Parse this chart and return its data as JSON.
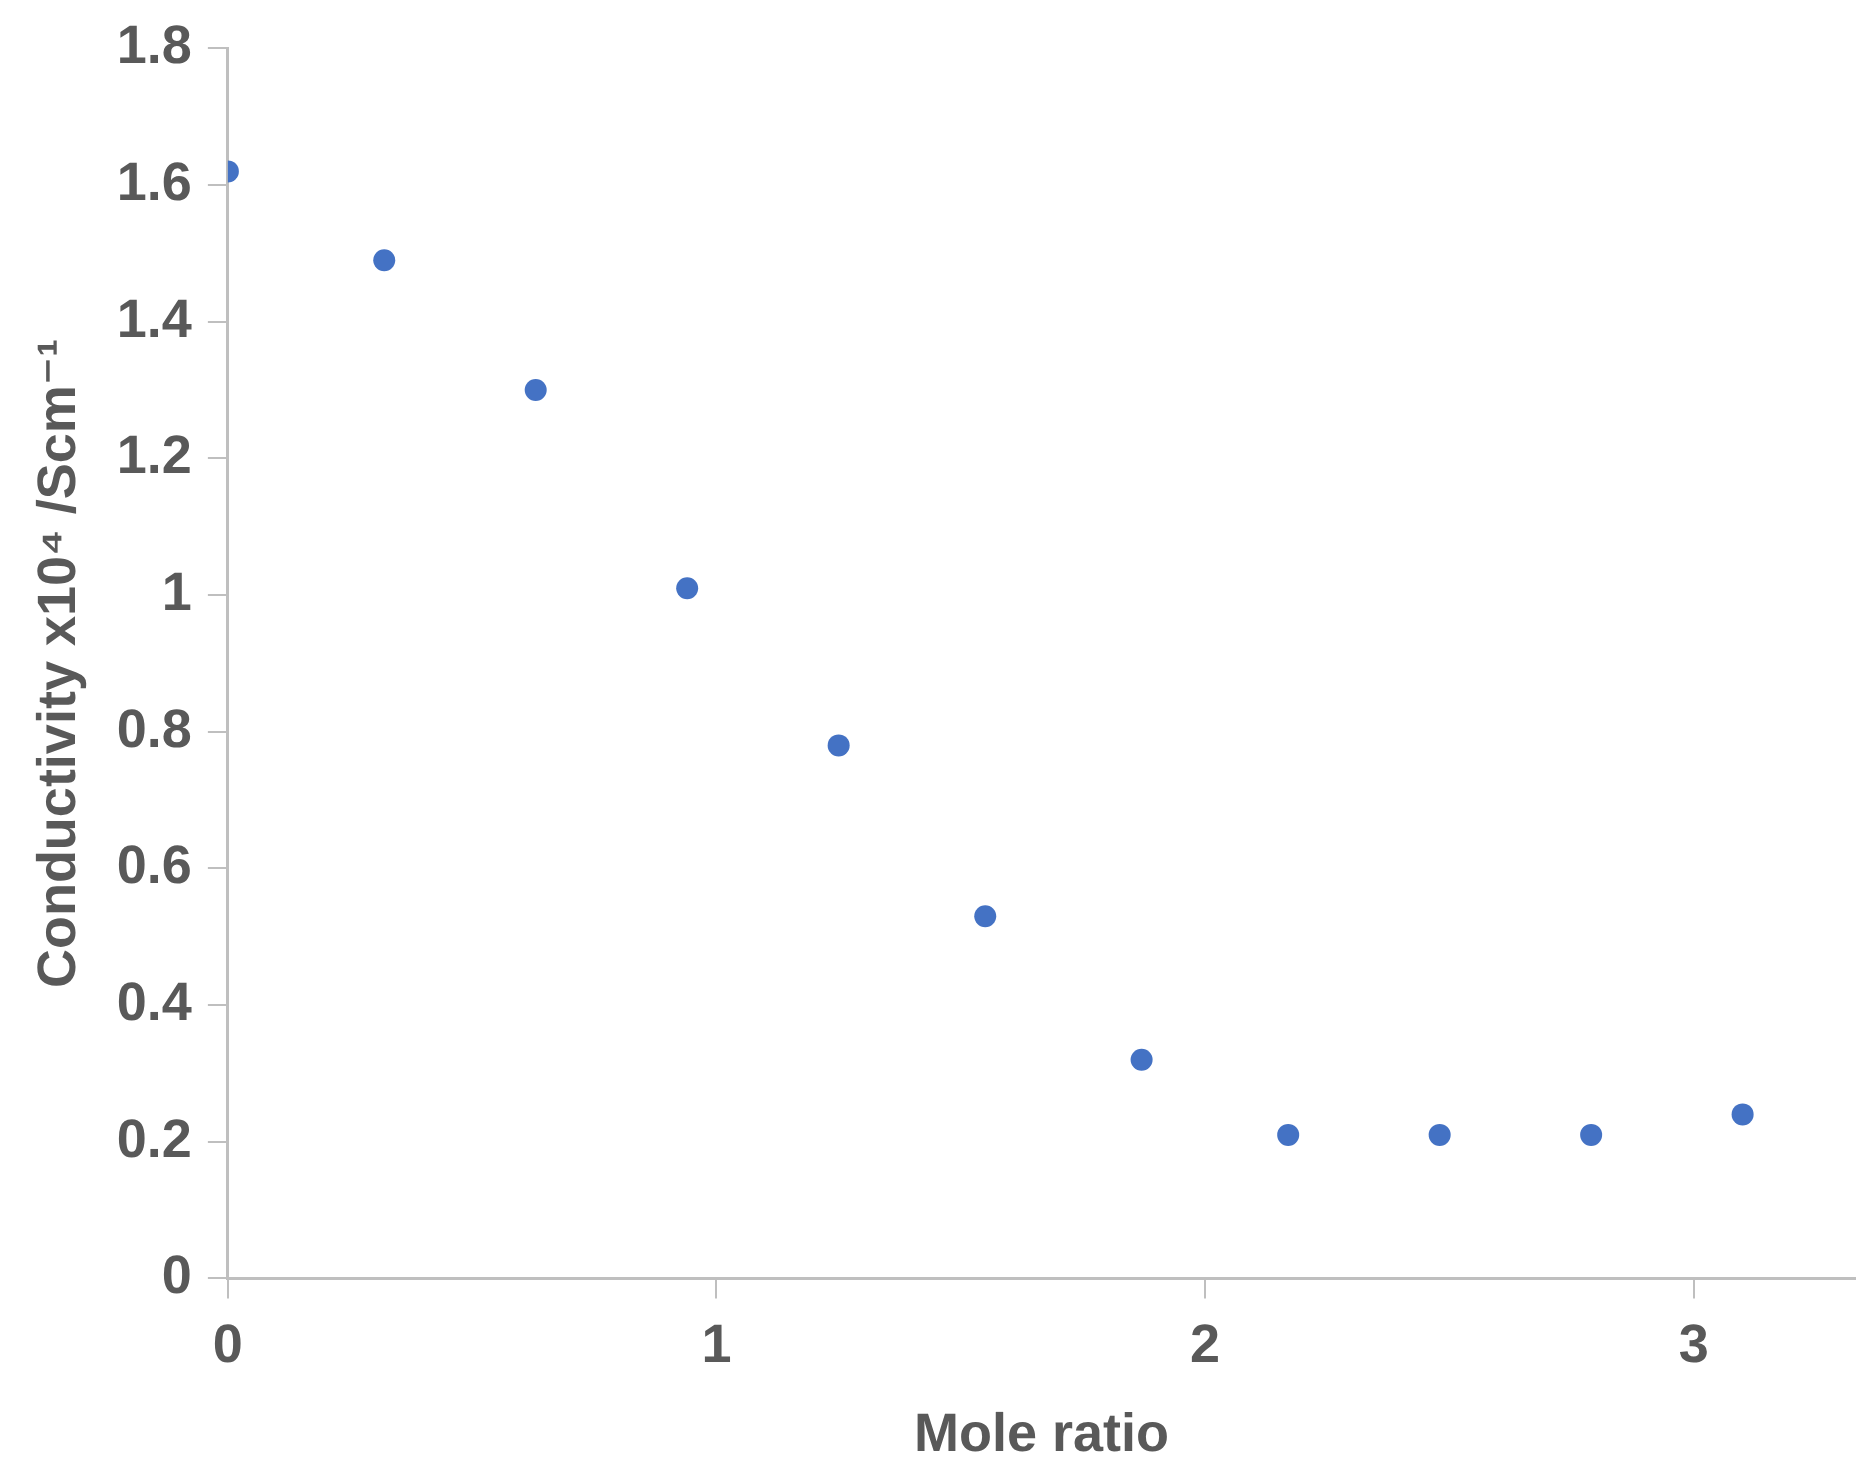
{
  "chart_data": {
    "type": "scatter",
    "xlabel": "Mole ratio",
    "ylabel": "Conductivity x10⁴ /Scm⁻¹",
    "x": [
      0,
      0.32,
      0.63,
      0.94,
      1.25,
      1.55,
      1.87,
      2.17,
      2.48,
      2.79,
      3.1
    ],
    "series": [
      {
        "color": "#4472c4",
        "values": [
          1.62,
          1.49,
          1.3,
          1.01,
          0.78,
          0.53,
          0.32,
          0.21,
          0.21,
          0.21,
          0.24
        ]
      }
    ],
    "xlim": [
      0,
      3.33
    ],
    "xticks": [
      0,
      1,
      2,
      3
    ],
    "ylim": [
      0,
      1.8
    ],
    "yticks": [
      0,
      0.2,
      0.4,
      0.6,
      0.8,
      1,
      1.2,
      1.4,
      1.6,
      1.8
    ],
    "grid": false,
    "legend": false,
    "marker": "circle"
  }
}
